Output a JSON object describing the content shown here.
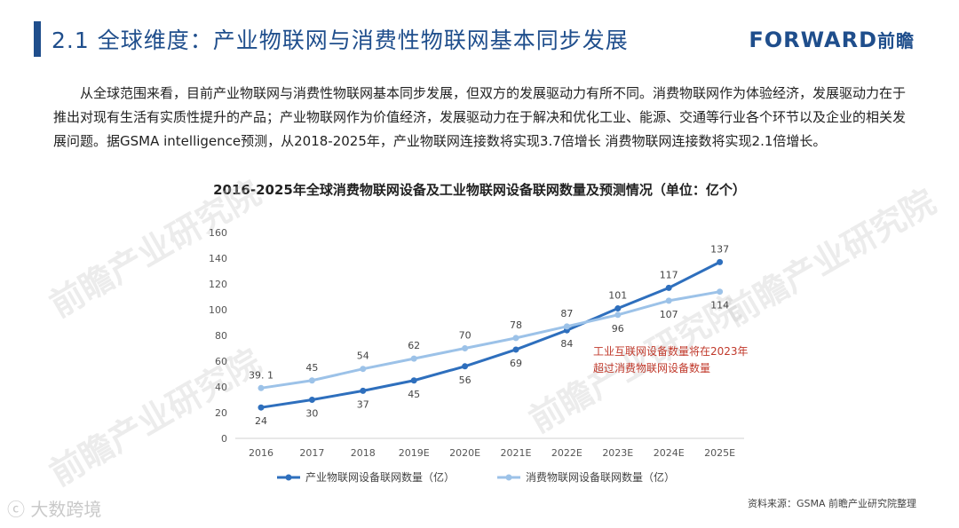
{
  "header": {
    "title": "2.1  全球维度：产业物联网与消费性物联网基本同步发展",
    "logo_en": "FORWARD",
    "logo_cn": "前瞻"
  },
  "intro_text": "从全球范围来看，目前产业物联网与消费性物联网基本同步发展，但双方的发展驱动力有所不同。消费物联网作为体验经济，发展驱动力在于推出对现有生活有实质性提升的产品；产业物联网作为价值经济，发展驱动力在于解决和优化工业、能源、交通等行业各个环节以及企业的相关发展问题。据GSMA intelligence预测，从2018-2025年，产业物联网连接数将实现3.7倍增长    消费物联网连接数将实现2.1倍增长。",
  "chart_data": {
    "type": "line",
    "title": "2016-2025年全球消费物联网设备及工业物联网设备联网数量及预测情况（单位：亿个）",
    "categories": [
      "2016",
      "2017",
      "2018",
      "2019E",
      "2020E",
      "2021E",
      "2022E",
      "2023E",
      "2024E",
      "2025E"
    ],
    "series": [
      {
        "name": "产业物联网设备联网数量（亿）",
        "color": "#2e6fbd",
        "values": [
          24,
          30,
          37,
          45,
          56,
          69,
          84,
          101,
          117,
          137
        ],
        "labels": [
          "24",
          "30",
          "37",
          "45",
          "56",
          "69",
          "84",
          "101",
          "117",
          "137"
        ]
      },
      {
        "name": "消费物联网设备联网数量（亿）",
        "color": "#9cc2e8",
        "values": [
          39.1,
          45,
          54,
          62,
          70,
          78,
          87,
          96,
          107,
          114
        ],
        "labels": [
          "39. 1",
          "45",
          "54",
          "62",
          "70",
          "78",
          "87",
          "96",
          "107",
          "114"
        ]
      }
    ],
    "ylim": [
      0,
      160
    ],
    "yticks": [
      0,
      20,
      40,
      60,
      80,
      100,
      120,
      140,
      160
    ],
    "grid": false,
    "legend_position": "bottom",
    "annotation": {
      "lines": [
        "工业互联网设备数量将在2023年",
        "超过消费物联网设备数量"
      ],
      "color": "#c0392b"
    }
  },
  "source": "资料来源：GSMA 前瞻产业研究院整理",
  "watermarks": [
    "前瞻产业研究院",
    "前瞻产业研究院",
    "前瞻产业研究院",
    "前瞻产业研究院"
  ],
  "corner_watermark": "大数跨境"
}
